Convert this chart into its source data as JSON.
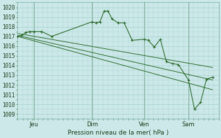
{
  "title": "Pression niveau de la mer( hPa )",
  "ylabel_ticks": [
    1009,
    1010,
    1011,
    1012,
    1013,
    1014,
    1015,
    1016,
    1017,
    1018,
    1019,
    1020
  ],
  "ylim": [
    1008.5,
    1020.5
  ],
  "background_color": "#cce8e8",
  "grid_color": "#99cccc",
  "line_color": "#2d6b2d",
  "xtick_labels": [
    "Jeu",
    "Dim",
    "Ven",
    "Sam"
  ],
  "xlim": [
    0,
    100
  ],
  "vline_x": [
    8,
    37,
    63,
    85
  ],
  "main_x": [
    0,
    2,
    4,
    6,
    8,
    12,
    17,
    37,
    39,
    41,
    43,
    45,
    47,
    50,
    53,
    57,
    63,
    65,
    68,
    71,
    74,
    77,
    80,
    85,
    88,
    91,
    94,
    97
  ],
  "main_y": [
    1017.0,
    1017.1,
    1017.4,
    1017.5,
    1017.5,
    1017.5,
    1017.0,
    1018.5,
    1018.4,
    1018.5,
    1019.6,
    1019.6,
    1018.8,
    1018.4,
    1018.4,
    1016.6,
    1016.7,
    1016.6,
    1015.9,
    1016.7,
    1014.4,
    1014.2,
    1014.1,
    1012.5,
    1009.5,
    1010.2,
    1012.6,
    1012.8
  ],
  "trend1_x": [
    0,
    97
  ],
  "trend1_y": [
    1017.0,
    1011.5
  ],
  "trend2_x": [
    0,
    97
  ],
  "trend2_y": [
    1017.1,
    1012.5
  ],
  "trend3_x": [
    0,
    97
  ],
  "trend3_y": [
    1017.3,
    1013.8
  ],
  "end_x": [
    85,
    88,
    91,
    94,
    97
  ],
  "end_y": [
    1012.5,
    1009.5,
    1010.2,
    1012.6,
    1011.5
  ]
}
